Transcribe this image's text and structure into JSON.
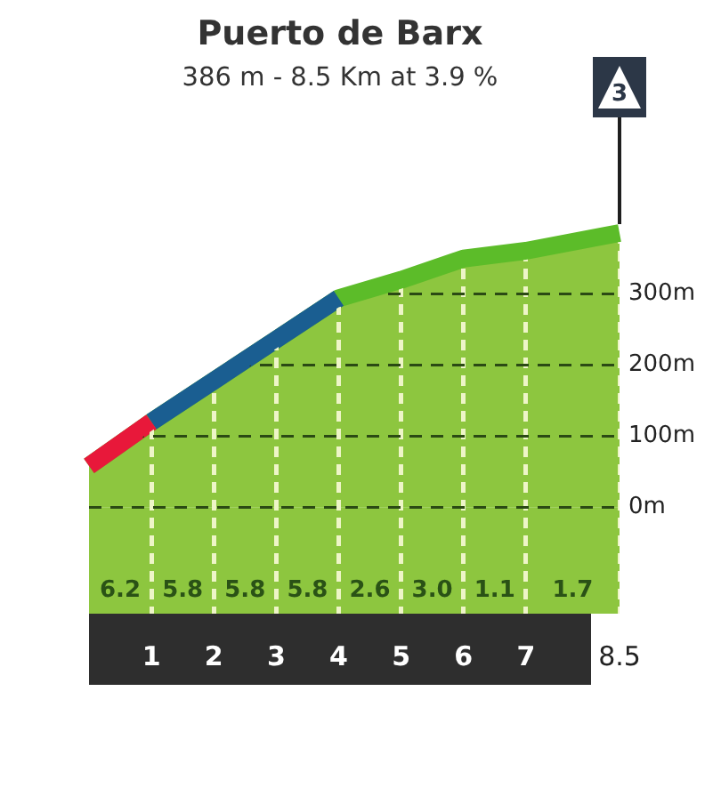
{
  "chart_data": {
    "type": "area",
    "title": "Puerto de Barx",
    "subtitle": "386 m - 8.5 Km at 3.9 %",
    "x": [
      0,
      1,
      2,
      3,
      4,
      5,
      6,
      7,
      8.5
    ],
    "series": [
      {
        "color": "#8dc63f",
        "values": [
          58,
          120,
          178,
          236,
          294,
          320,
          350,
          361,
          386
        ]
      },
      {
        "type": "line",
        "color": "#e8183a",
        "x": [
          0,
          1
        ],
        "values": [
          58,
          120
        ]
      },
      {
        "type": "line",
        "color": "#1a5e91",
        "x": [
          1,
          2,
          3,
          4
        ],
        "values": [
          120,
          178,
          236,
          294
        ]
      }
    ],
    "xlim": [
      0,
      8.5
    ],
    "xticks": [
      1,
      2,
      3,
      4,
      5,
      6,
      7,
      8.5
    ],
    "ylim": [
      -150,
      386
    ],
    "yticks": [
      {
        "value": 0,
        "label": "0m"
      },
      {
        "value": 100,
        "label": "100m"
      },
      {
        "value": 200,
        "label": "200m"
      },
      {
        "value": 300,
        "label": "300m"
      }
    ],
    "grid": true,
    "bands": [
      {
        "axis": "y",
        "from": -150,
        "to": 0,
        "color": "#8dc63f"
      }
    ],
    "annotations": [
      "3",
      "6.2",
      "5.8",
      "5.8",
      "5.8",
      "2.6",
      "3.0",
      "1.1",
      "1.7"
    ]
  }
}
